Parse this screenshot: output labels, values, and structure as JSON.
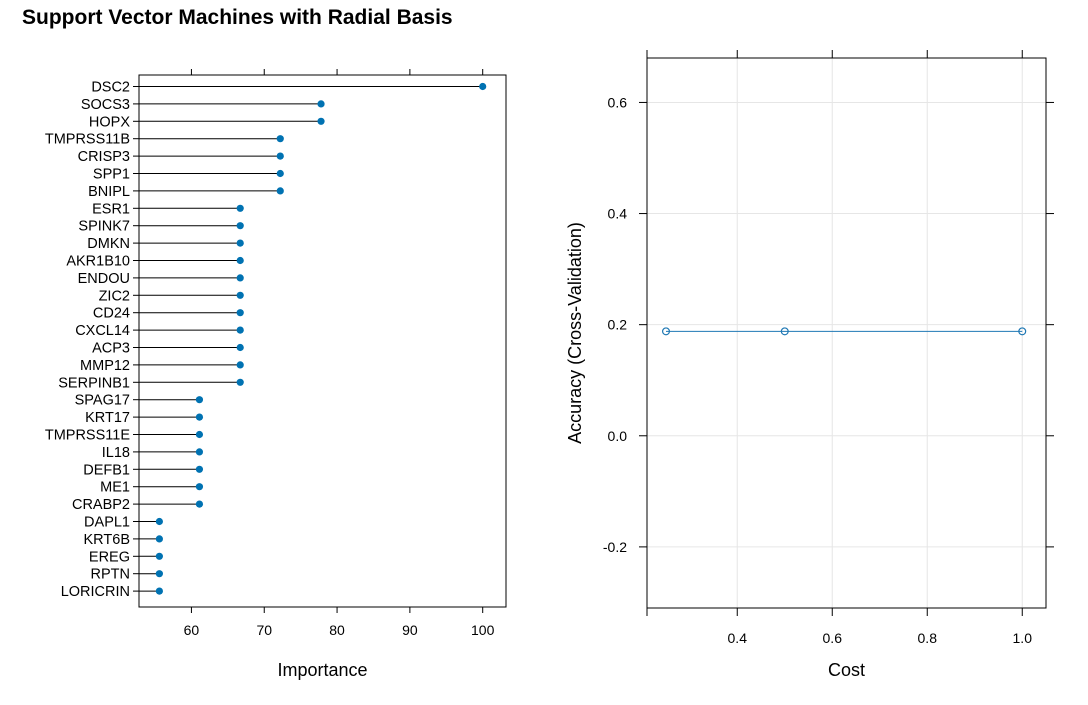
{
  "title": "Support Vector Machines with Radial Basis",
  "colors": {
    "point": "#0072B2",
    "line": "#000000",
    "grid": "#e6e6e6",
    "series": "#1f78b4"
  },
  "chart_data": [
    {
      "type": "dot",
      "subtype": "lollipop-importance",
      "xlabel": "Importance",
      "ylabel": "",
      "xlim": [
        52.8,
        103.2
      ],
      "xticks": [
        60,
        70,
        80,
        90,
        100
      ],
      "grid": false,
      "categories": [
        "DSC2",
        "SOCS3",
        "HOPX",
        "TMPRSS11B",
        "CRISP3",
        "SPP1",
        "BNIPL",
        "ESR1",
        "SPINK7",
        "DMKN",
        "AKR1B10",
        "ENDOU",
        "ZIC2",
        "CD24",
        "CXCL14",
        "ACP3",
        "MMP12",
        "SERPINB1",
        "SPAG17",
        "KRT17",
        "TMPRSS11E",
        "IL18",
        "DEFB1",
        "ME1",
        "CRABP2",
        "DAPL1",
        "KRT6B",
        "EREG",
        "RPTN",
        "LORICRIN"
      ],
      "values": [
        100,
        77.8,
        77.8,
        72.2,
        72.2,
        72.2,
        72.2,
        66.7,
        66.7,
        66.7,
        66.7,
        66.7,
        66.7,
        66.7,
        66.7,
        66.7,
        66.7,
        66.7,
        61.1,
        61.1,
        61.1,
        61.1,
        61.1,
        61.1,
        61.1,
        55.6,
        55.6,
        55.6,
        55.6,
        55.6
      ]
    },
    {
      "type": "line",
      "xlabel": "Cost",
      "ylabel": "Accuracy (Cross-Validation)",
      "xlim": [
        0.21,
        1.05
      ],
      "ylim": [
        -0.31,
        0.68
      ],
      "xticks": [
        0.4,
        0.6,
        0.8,
        1.0
      ],
      "xtick_labels": [
        "0.4",
        "0.6",
        "0.8",
        "1.0"
      ],
      "yticks": [
        -0.2,
        0.0,
        0.2,
        0.4,
        0.6
      ],
      "ytick_labels": [
        "-0.2",
        "0.0",
        "0.2",
        "0.4",
        "0.6"
      ],
      "grid": true,
      "series": [
        {
          "x": [
            0.25,
            0.5,
            1.0
          ],
          "y": [
            0.188,
            0.188,
            0.188
          ]
        }
      ]
    }
  ]
}
